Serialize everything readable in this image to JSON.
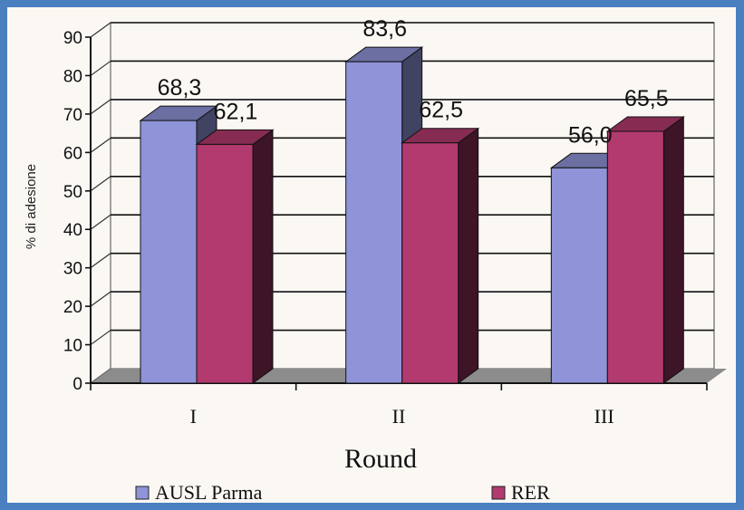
{
  "chart_data": {
    "type": "bar",
    "categories": [
      "I",
      "II",
      "III"
    ],
    "series": [
      {
        "name": "AUSL Parma",
        "values": [
          68.3,
          83.6,
          56.0
        ],
        "labels": [
          "68,3",
          "83,6",
          "56,0"
        ],
        "color": "#8f94d8"
      },
      {
        "name": "RER",
        "values": [
          62.1,
          62.5,
          65.5
        ],
        "labels": [
          "62,1",
          "62,5",
          "65,5"
        ],
        "color": "#b23a6e"
      }
    ],
    "y_ticks": [
      "0",
      "10",
      "20",
      "30",
      "40",
      "50",
      "60",
      "70",
      "80",
      "90"
    ],
    "ylim": [
      0,
      90
    ],
    "ylabel": "% di adesione",
    "xlabel": "Round",
    "grid": true,
    "legend_position": "bottom"
  }
}
